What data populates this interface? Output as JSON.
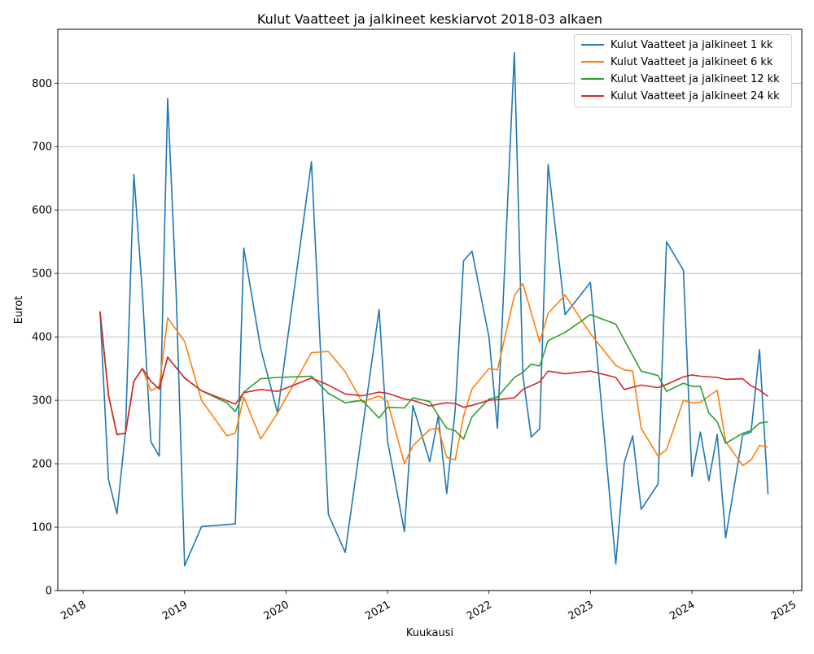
{
  "chart_data": {
    "type": "line",
    "title": "Kulut Vaatteet ja jalkineet keskiarvot 2018-03 alkaen",
    "xlabel": "Kuukausi",
    "ylabel": "Eurot",
    "x_ticks": [
      "2018",
      "2019",
      "2020",
      "2021",
      "2022",
      "2023",
      "2024",
      "2025"
    ],
    "y_ticks": [
      0,
      100,
      200,
      300,
      400,
      500,
      600,
      700,
      800
    ],
    "xlim": [
      "2017-10",
      "2025-02"
    ],
    "ylim": [
      0,
      885
    ],
    "grid": "horizontal",
    "legend_position": "top-right",
    "series": [
      {
        "name": "Kulut Vaatteet ja jalkineet 1 kk",
        "color": "#1f77b4",
        "points": [
          [
            "2018-03",
            440
          ],
          [
            "2018-04",
            175
          ],
          [
            "2018-05",
            121
          ],
          [
            "2018-06",
            250
          ],
          [
            "2018-07",
            656
          ],
          [
            "2018-08",
            470
          ],
          [
            "2018-09",
            235
          ],
          [
            "2018-10",
            212
          ],
          [
            "2018-11",
            776
          ],
          [
            "2018-12",
            470
          ],
          [
            "2019-01",
            39
          ],
          [
            "2019-03",
            101
          ],
          [
            "2019-07",
            105
          ],
          [
            "2019-08",
            540
          ],
          [
            "2019-10",
            381
          ],
          [
            "2019-12",
            280
          ],
          [
            "2020-04",
            676
          ],
          [
            "2020-06",
            120
          ],
          [
            "2020-08",
            60
          ],
          [
            "2020-12",
            443
          ],
          [
            "2021-01",
            236
          ],
          [
            "2021-03",
            93
          ],
          [
            "2021-04",
            292
          ],
          [
            "2021-06",
            203
          ],
          [
            "2021-07",
            275
          ],
          [
            "2021-08",
            153
          ],
          [
            "2021-09",
            285
          ],
          [
            "2021-10",
            520
          ],
          [
            "2021-11",
            535
          ],
          [
            "2022-01",
            400
          ],
          [
            "2022-02",
            256
          ],
          [
            "2022-04",
            848
          ],
          [
            "2022-05",
            340
          ],
          [
            "2022-06",
            242
          ],
          [
            "2022-07",
            255
          ],
          [
            "2022-08",
            672
          ],
          [
            "2022-10",
            435
          ],
          [
            "2023-01",
            486
          ],
          [
            "2023-04",
            42
          ],
          [
            "2023-05",
            202
          ],
          [
            "2023-06",
            244
          ],
          [
            "2023-07",
            128
          ],
          [
            "2023-09",
            168
          ],
          [
            "2023-10",
            550
          ],
          [
            "2023-12",
            505
          ],
          [
            "2024-01",
            180
          ],
          [
            "2024-02",
            250
          ],
          [
            "2024-03",
            173
          ],
          [
            "2024-04",
            246
          ],
          [
            "2024-05",
            83
          ],
          [
            "2024-07",
            245
          ],
          [
            "2024-08",
            250
          ],
          [
            "2024-09",
            380
          ],
          [
            "2024-10",
            152
          ]
        ]
      },
      {
        "name": "Kulut Vaatteet ja jalkineet 6 kk",
        "color": "#ff7f0e",
        "points": [
          [
            "2018-03",
            440
          ],
          [
            "2018-04",
            308
          ],
          [
            "2018-05",
            246
          ],
          [
            "2018-06",
            248
          ],
          [
            "2018-07",
            330
          ],
          [
            "2018-08",
            350
          ],
          [
            "2018-09",
            315
          ],
          [
            "2018-10",
            322
          ],
          [
            "2018-11",
            430
          ],
          [
            "2019-01",
            393
          ],
          [
            "2019-03",
            300
          ],
          [
            "2019-06",
            244
          ],
          [
            "2019-07",
            248
          ],
          [
            "2019-08",
            305
          ],
          [
            "2019-10",
            239
          ],
          [
            "2019-12",
            280
          ],
          [
            "2020-04",
            375
          ],
          [
            "2020-06",
            377
          ],
          [
            "2020-08",
            345
          ],
          [
            "2020-10",
            297
          ],
          [
            "2020-12",
            307
          ],
          [
            "2021-01",
            298
          ],
          [
            "2021-03",
            200
          ],
          [
            "2021-04",
            228
          ],
          [
            "2021-06",
            254
          ],
          [
            "2021-07",
            256
          ],
          [
            "2021-08",
            210
          ],
          [
            "2021-09",
            206
          ],
          [
            "2021-10",
            275
          ],
          [
            "2021-11",
            318
          ],
          [
            "2022-01",
            350
          ],
          [
            "2022-02",
            348
          ],
          [
            "2022-04",
            465
          ],
          [
            "2022-05",
            484
          ],
          [
            "2022-07",
            392
          ],
          [
            "2022-08",
            437
          ],
          [
            "2022-10",
            466
          ],
          [
            "2023-01",
            405
          ],
          [
            "2023-04",
            355
          ],
          [
            "2023-05",
            348
          ],
          [
            "2023-06",
            346
          ],
          [
            "2023-07",
            256
          ],
          [
            "2023-09",
            212
          ],
          [
            "2023-10",
            222
          ],
          [
            "2023-12",
            300
          ],
          [
            "2024-01",
            296
          ],
          [
            "2024-02",
            297
          ],
          [
            "2024-04",
            316
          ],
          [
            "2024-05",
            235
          ],
          [
            "2024-07",
            197
          ],
          [
            "2024-08",
            206
          ],
          [
            "2024-09",
            229
          ],
          [
            "2024-10",
            226
          ]
        ]
      },
      {
        "name": "Kulut Vaatteet ja jalkineet 12 kk",
        "color": "#2ca02c",
        "points": [
          [
            "2018-03",
            440
          ],
          [
            "2018-04",
            308
          ],
          [
            "2018-05",
            246
          ],
          [
            "2018-06",
            248
          ],
          [
            "2018-07",
            330
          ],
          [
            "2018-08",
            350
          ],
          [
            "2018-09",
            330
          ],
          [
            "2018-10",
            318
          ],
          [
            "2018-11",
            368
          ],
          [
            "2019-01",
            335
          ],
          [
            "2019-03",
            315
          ],
          [
            "2019-06",
            296
          ],
          [
            "2019-07",
            282
          ],
          [
            "2019-08",
            313
          ],
          [
            "2019-10",
            334
          ],
          [
            "2019-12",
            336
          ],
          [
            "2020-04",
            338
          ],
          [
            "2020-06",
            311
          ],
          [
            "2020-08",
            296
          ],
          [
            "2020-10",
            300
          ],
          [
            "2020-12",
            272
          ],
          [
            "2021-01",
            289
          ],
          [
            "2021-03",
            288
          ],
          [
            "2021-04",
            304
          ],
          [
            "2021-06",
            298
          ],
          [
            "2021-07",
            276
          ],
          [
            "2021-08",
            256
          ],
          [
            "2021-09",
            252
          ],
          [
            "2021-10",
            239
          ],
          [
            "2021-11",
            274
          ],
          [
            "2022-01",
            302
          ],
          [
            "2022-02",
            305
          ],
          [
            "2022-04",
            336
          ],
          [
            "2022-05",
            344
          ],
          [
            "2022-06",
            357
          ],
          [
            "2022-07",
            354
          ],
          [
            "2022-08",
            394
          ],
          [
            "2022-10",
            407
          ],
          [
            "2023-01",
            435
          ],
          [
            "2023-04",
            420
          ],
          [
            "2023-05",
            395
          ],
          [
            "2023-07",
            346
          ],
          [
            "2023-09",
            339
          ],
          [
            "2023-10",
            314
          ],
          [
            "2023-12",
            327
          ],
          [
            "2024-01",
            322
          ],
          [
            "2024-02",
            322
          ],
          [
            "2024-03",
            280
          ],
          [
            "2024-04",
            266
          ],
          [
            "2024-05",
            232
          ],
          [
            "2024-07",
            248
          ],
          [
            "2024-08",
            252
          ],
          [
            "2024-09",
            264
          ],
          [
            "2024-10",
            266
          ]
        ]
      },
      {
        "name": "Kulut Vaatteet ja jalkineet 24 kk",
        "color": "#d62728",
        "points": [
          [
            "2018-03",
            440
          ],
          [
            "2018-04",
            308
          ],
          [
            "2018-05",
            246
          ],
          [
            "2018-06",
            248
          ],
          [
            "2018-07",
            330
          ],
          [
            "2018-08",
            350
          ],
          [
            "2018-09",
            330
          ],
          [
            "2018-10",
            318
          ],
          [
            "2018-11",
            368
          ],
          [
            "2019-01",
            335
          ],
          [
            "2019-03",
            315
          ],
          [
            "2019-07",
            294
          ],
          [
            "2019-08",
            312
          ],
          [
            "2019-10",
            317
          ],
          [
            "2019-12",
            314
          ],
          [
            "2020-04",
            335
          ],
          [
            "2020-06",
            324
          ],
          [
            "2020-08",
            310
          ],
          [
            "2020-10",
            307
          ],
          [
            "2020-12",
            313
          ],
          [
            "2021-01",
            311
          ],
          [
            "2021-03",
            302
          ],
          [
            "2021-04",
            300
          ],
          [
            "2021-06",
            291
          ],
          [
            "2021-07",
            294
          ],
          [
            "2021-08",
            296
          ],
          [
            "2021-09",
            295
          ],
          [
            "2021-10",
            289
          ],
          [
            "2021-11",
            292
          ],
          [
            "2022-01",
            300
          ],
          [
            "2022-02",
            301
          ],
          [
            "2022-04",
            304
          ],
          [
            "2022-05",
            317
          ],
          [
            "2022-07",
            329
          ],
          [
            "2022-08",
            346
          ],
          [
            "2022-10",
            342
          ],
          [
            "2023-01",
            346
          ],
          [
            "2023-04",
            336
          ],
          [
            "2023-05",
            317
          ],
          [
            "2023-07",
            324
          ],
          [
            "2023-09",
            320
          ],
          [
            "2023-10",
            325
          ],
          [
            "2023-12",
            337
          ],
          [
            "2024-01",
            340
          ],
          [
            "2024-02",
            338
          ],
          [
            "2024-04",
            336
          ],
          [
            "2024-05",
            333
          ],
          [
            "2024-07",
            334
          ],
          [
            "2024-08",
            323
          ],
          [
            "2024-09",
            316
          ],
          [
            "2024-10",
            306
          ]
        ]
      }
    ]
  }
}
